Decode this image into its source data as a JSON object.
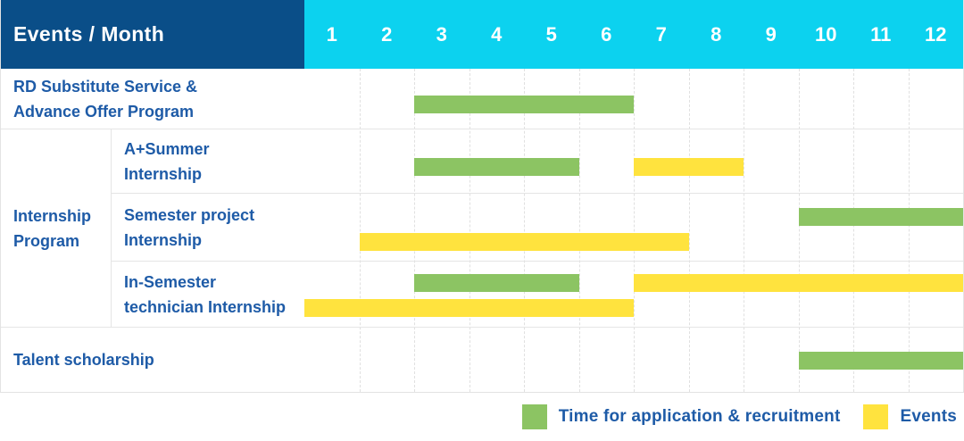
{
  "header": {
    "corner_label": "Events / Month",
    "months": [
      "1",
      "2",
      "3",
      "4",
      "5",
      "6",
      "7",
      "8",
      "9",
      "10",
      "11",
      "12"
    ]
  },
  "colors": {
    "header_bg": "#0a4e88",
    "months_bg": "#0cd2ef",
    "label_text": "#1e5ba7",
    "recruitment": "#8cc463",
    "event": "#ffe33e"
  },
  "group_label_lines": [
    "Internship",
    "Program"
  ],
  "chart_data": {
    "type": "gantt",
    "x_unit": "month",
    "x_range": [
      1,
      12
    ],
    "legend": [
      {
        "kind": "recruitment",
        "label": "Time for application & recruitment"
      },
      {
        "kind": "event",
        "label": "Events"
      }
    ],
    "rows": [
      {
        "label_lines": [
          "RD Substitute Service &",
          "Advance Offer Program"
        ],
        "group": "",
        "bars": [
          {
            "kind": "recruitment",
            "start_month": 3,
            "end_month": 6,
            "lane": "single"
          }
        ]
      },
      {
        "label_lines": [
          "A+Summer",
          "Internship"
        ],
        "group": "Internship Program",
        "bars": [
          {
            "kind": "recruitment",
            "start_month": 3,
            "end_month": 5,
            "lane": "single"
          },
          {
            "kind": "event",
            "start_month": 7,
            "end_month": 8,
            "lane": "single"
          }
        ]
      },
      {
        "label_lines": [
          "Semester project",
          "Internship"
        ],
        "group": "Internship Program",
        "bars": [
          {
            "kind": "recruitment",
            "start_month": 10,
            "end_month": 12,
            "lane": "upper"
          },
          {
            "kind": "event",
            "start_month": 2,
            "end_month": 7,
            "lane": "lower"
          }
        ]
      },
      {
        "label_lines": [
          "In-Semester",
          "technician Internship"
        ],
        "group": "Internship Program",
        "bars": [
          {
            "kind": "recruitment",
            "start_month": 3,
            "end_month": 5,
            "lane": "upper"
          },
          {
            "kind": "event",
            "start_month": 7,
            "end_month": 12,
            "lane": "upper"
          },
          {
            "kind": "event",
            "start_month": 1,
            "end_month": 6,
            "lane": "lower"
          }
        ]
      },
      {
        "label_lines": [
          "Talent scholarship"
        ],
        "group": "",
        "bars": [
          {
            "kind": "recruitment",
            "start_month": 10,
            "end_month": 12,
            "lane": "single"
          }
        ]
      }
    ]
  }
}
